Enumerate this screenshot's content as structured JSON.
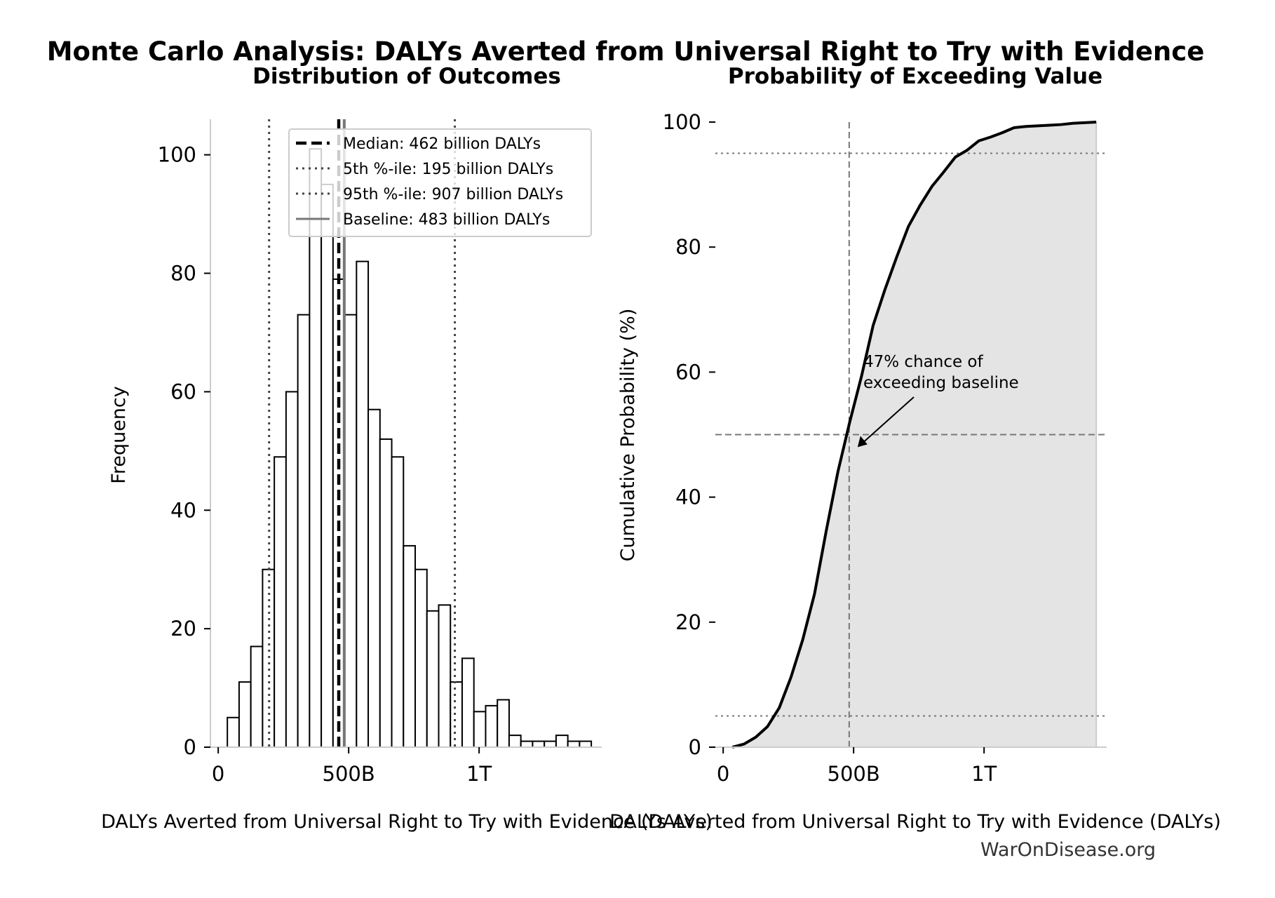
{
  "title": "Monte Carlo Analysis: DALYs Averted from Universal Right to Try with Evidence",
  "watermark": "WarOnDisease.org",
  "chart_data": [
    {
      "type": "bar",
      "title": "Distribution of Outcomes",
      "xlabel": "DALYs Averted from Universal Right to Try with Evidence (DALYs)",
      "ylabel": "Frequency",
      "xlim": [
        -30,
        1470
      ],
      "ylim": [
        0,
        106
      ],
      "x_ticks": [
        0,
        500,
        1000
      ],
      "x_tick_labels": [
        "0",
        "500B",
        "1T"
      ],
      "y_ticks": [
        0,
        20,
        40,
        60,
        80,
        100
      ],
      "y_tick_labels": [
        "0",
        "20",
        "40",
        "60",
        "80",
        "100"
      ],
      "bin_width": 45,
      "bin_starts": [
        35,
        80,
        125,
        170,
        215,
        260,
        305,
        350,
        395,
        440,
        485,
        530,
        575,
        620,
        665,
        710,
        755,
        800,
        845,
        890,
        935,
        980,
        1025,
        1070,
        1115,
        1160,
        1205,
        1250,
        1295,
        1340,
        1385
      ],
      "values": [
        5,
        11,
        17,
        30,
        49,
        60,
        73,
        101,
        95,
        79,
        73,
        82,
        57,
        52,
        49,
        34,
        30,
        23,
        24,
        11,
        15,
        6,
        7,
        8,
        2,
        1,
        1,
        1,
        2,
        1,
        1
      ],
      "median": 462,
      "p5": 195,
      "p95": 907,
      "baseline": 483,
      "legend_position": "upper-center",
      "legend": [
        {
          "label": "Median: 462 billion DALYs",
          "style": "dashed",
          "color": "#000000"
        },
        {
          "label": "5th %-ile: 195 billion DALYs",
          "style": "dotted",
          "color": "#444444"
        },
        {
          "label": "95th %-ile: 907 billion DALYs",
          "style": "dotted",
          "color": "#444444"
        },
        {
          "label": "Baseline: 483 billion DALYs",
          "style": "solid",
          "color": "#777777"
        }
      ]
    },
    {
      "type": "line",
      "title": "Probability of Exceeding Value",
      "xlabel": "DALYs Averted from Universal Right to Try with Evidence (DALYs)",
      "ylabel": "Cumulative Probability (%)",
      "xlim": [
        -30,
        1470
      ],
      "ylim": [
        0,
        100
      ],
      "x_ticks": [
        0,
        500,
        1000
      ],
      "x_tick_labels": [
        "0",
        "500B",
        "1T"
      ],
      "y_ticks": [
        0,
        20,
        40,
        60,
        80,
        100
      ],
      "y_tick_labels": [
        "0",
        "20",
        "40",
        "60",
        "80",
        "100"
      ],
      "fill_color": "#e4e4e4",
      "baseline_x": 483,
      "hlines": [
        5,
        50,
        95
      ],
      "x": [
        35,
        80,
        125,
        170,
        215,
        260,
        305,
        350,
        395,
        440,
        485,
        530,
        575,
        620,
        665,
        710,
        755,
        800,
        845,
        890,
        935,
        980,
        1025,
        1070,
        1115,
        1160,
        1205,
        1250,
        1295,
        1340,
        1385,
        1430
      ],
      "y": [
        0,
        0.5,
        1.6,
        3.3,
        6.3,
        11.2,
        17.2,
        24.5,
        34.6,
        44.1,
        52.0,
        59.3,
        67.5,
        73.2,
        78.4,
        83.3,
        86.7,
        89.7,
        92.0,
        94.4,
        95.5,
        97.0,
        97.6,
        98.3,
        99.1,
        99.3,
        99.4,
        99.5,
        99.6,
        99.8,
        99.9,
        100.0
      ],
      "annotation": {
        "lines": [
          "47% chance of",
          "exceeding baseline"
        ],
        "x": 483,
        "y": 48
      }
    }
  ]
}
